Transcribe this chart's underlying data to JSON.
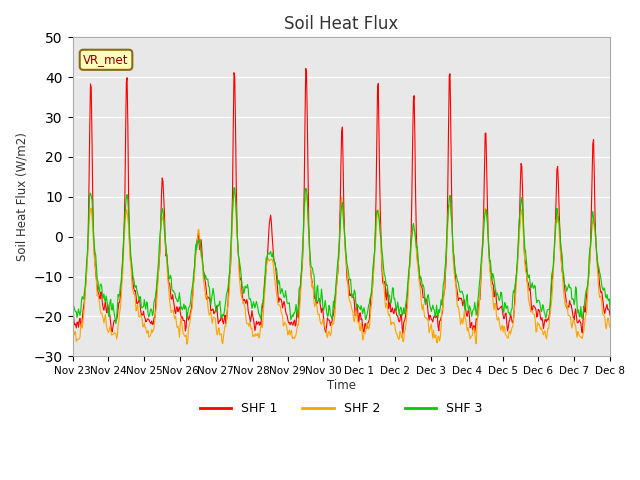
{
  "title": "Soil Heat Flux",
  "ylabel": "Soil Heat Flux (W/m2)",
  "xlabel": "Time",
  "ylim": [
    -30,
    50
  ],
  "bg_color": "#e8e8e8",
  "legend_label": "VR_met",
  "series_labels": [
    "SHF 1",
    "SHF 2",
    "SHF 3"
  ],
  "series_colors": [
    "#ff0000",
    "#ffa500",
    "#00cc00"
  ],
  "xtick_labels": [
    "Nov 23",
    "Nov 24",
    "Nov 25",
    "Nov 26",
    "Nov 27",
    "Nov 28",
    "Nov 29",
    "Nov 30",
    "Dec 1",
    "Dec 2",
    "Dec 3",
    "Dec 4",
    "Dec 5",
    "Dec 6",
    "Dec 7",
    "Dec 8"
  ],
  "n_days": 15,
  "points_per_day": 48,
  "shf1_peaks": [
    41,
    43,
    16,
    -1,
    44,
    5,
    45,
    30,
    41,
    39,
    45,
    29,
    20,
    20,
    25
  ],
  "shf2_peaks": [
    8,
    7,
    6,
    -1,
    12,
    -5,
    12,
    8,
    7,
    3,
    9,
    8,
    7,
    5,
    4
  ],
  "shf3_peaks": [
    12,
    10,
    7,
    -1,
    12,
    -5,
    13,
    8,
    7,
    3,
    10,
    8,
    9,
    7,
    6
  ],
  "night_base": -20,
  "night_base2": -23,
  "night_base3": -17
}
